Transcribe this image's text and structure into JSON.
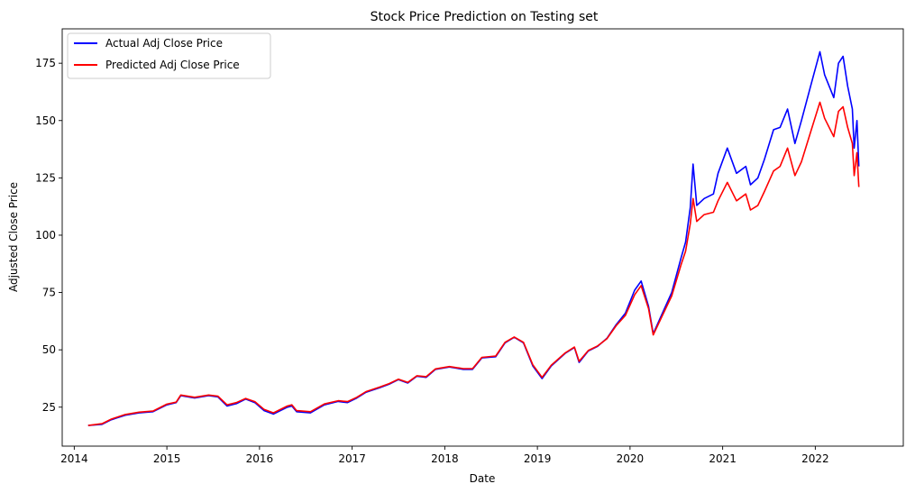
{
  "chart_data": {
    "type": "line",
    "title": "Stock Price Prediction on Testing set",
    "xlabel": "Date",
    "ylabel": "Adjusted Close Price",
    "xlim": [
      2013.87,
      2022.95
    ],
    "ylim": [
      8,
      190
    ],
    "x_ticks": [
      2014,
      2015,
      2016,
      2017,
      2018,
      2019,
      2020,
      2021,
      2022
    ],
    "x_tick_labels": [
      "2014",
      "2015",
      "2016",
      "2017",
      "2018",
      "2019",
      "2020",
      "2021",
      "2022"
    ],
    "y_ticks": [
      25,
      50,
      75,
      100,
      125,
      150,
      175
    ],
    "y_tick_labels": [
      "25",
      "50",
      "75",
      "100",
      "125",
      "150",
      "175"
    ],
    "grid": false,
    "legend_position": "top-left",
    "series": [
      {
        "name": "Actual Adj Close Price",
        "color": "#0000ff",
        "points": [
          [
            2014.15,
            17
          ],
          [
            2014.3,
            17.5
          ],
          [
            2014.4,
            19.5
          ],
          [
            2014.55,
            21.5
          ],
          [
            2014.7,
            22.5
          ],
          [
            2014.85,
            23
          ],
          [
            2015.0,
            26
          ],
          [
            2015.1,
            27
          ],
          [
            2015.15,
            30
          ],
          [
            2015.3,
            29
          ],
          [
            2015.45,
            30
          ],
          [
            2015.55,
            29.5
          ],
          [
            2015.65,
            25.5
          ],
          [
            2015.75,
            26.5
          ],
          [
            2015.85,
            28.5
          ],
          [
            2015.95,
            27
          ],
          [
            2016.05,
            23.5
          ],
          [
            2016.15,
            22
          ],
          [
            2016.3,
            25
          ],
          [
            2016.35,
            25.5
          ],
          [
            2016.4,
            23
          ],
          [
            2016.55,
            22.5
          ],
          [
            2016.7,
            26
          ],
          [
            2016.85,
            27.5
          ],
          [
            2016.95,
            27
          ],
          [
            2017.05,
            29
          ],
          [
            2017.15,
            31.5
          ],
          [
            2017.3,
            33.5
          ],
          [
            2017.4,
            35
          ],
          [
            2017.5,
            37
          ],
          [
            2017.6,
            35.5
          ],
          [
            2017.7,
            38.5
          ],
          [
            2017.8,
            38
          ],
          [
            2017.9,
            41.5
          ],
          [
            2018.05,
            42.5
          ],
          [
            2018.2,
            41.5
          ],
          [
            2018.3,
            41.5
          ],
          [
            2018.4,
            46.5
          ],
          [
            2018.55,
            47
          ],
          [
            2018.65,
            53
          ],
          [
            2018.75,
            55.5
          ],
          [
            2018.85,
            53
          ],
          [
            2018.95,
            43
          ],
          [
            2019.05,
            37.5
          ],
          [
            2019.15,
            43
          ],
          [
            2019.3,
            48.5
          ],
          [
            2019.4,
            51
          ],
          [
            2019.45,
            44.5
          ],
          [
            2019.55,
            49.5
          ],
          [
            2019.65,
            51.5
          ],
          [
            2019.75,
            55
          ],
          [
            2019.85,
            61
          ],
          [
            2019.95,
            66
          ],
          [
            2020.05,
            76
          ],
          [
            2020.12,
            80
          ],
          [
            2020.2,
            69
          ],
          [
            2020.25,
            57
          ],
          [
            2020.35,
            66
          ],
          [
            2020.45,
            75
          ],
          [
            2020.55,
            90
          ],
          [
            2020.6,
            97
          ],
          [
            2020.65,
            112
          ],
          [
            2020.68,
            131
          ],
          [
            2020.72,
            113
          ],
          [
            2020.8,
            116
          ],
          [
            2020.9,
            118
          ],
          [
            2020.95,
            127
          ],
          [
            2021.05,
            138
          ],
          [
            2021.15,
            127
          ],
          [
            2021.25,
            130
          ],
          [
            2021.3,
            122
          ],
          [
            2021.38,
            125
          ],
          [
            2021.45,
            133
          ],
          [
            2021.55,
            146
          ],
          [
            2021.62,
            147
          ],
          [
            2021.7,
            155
          ],
          [
            2021.78,
            140
          ],
          [
            2021.85,
            150
          ],
          [
            2021.95,
            165
          ],
          [
            2022.05,
            180
          ],
          [
            2022.1,
            170
          ],
          [
            2022.2,
            160
          ],
          [
            2022.25,
            175
          ],
          [
            2022.3,
            178
          ],
          [
            2022.35,
            165
          ],
          [
            2022.4,
            155
          ],
          [
            2022.42,
            138
          ],
          [
            2022.45,
            150
          ],
          [
            2022.47,
            130
          ]
        ]
      },
      {
        "name": "Predicted Adj Close Price",
        "color": "#ff0000",
        "points": [
          [
            2014.15,
            17
          ],
          [
            2014.3,
            17.8
          ],
          [
            2014.4,
            19.8
          ],
          [
            2014.55,
            21.8
          ],
          [
            2014.7,
            22.8
          ],
          [
            2014.85,
            23.3
          ],
          [
            2015.0,
            26.3
          ],
          [
            2015.1,
            27.2
          ],
          [
            2015.15,
            30.3
          ],
          [
            2015.3,
            29.3
          ],
          [
            2015.45,
            30.3
          ],
          [
            2015.55,
            29.8
          ],
          [
            2015.65,
            26
          ],
          [
            2015.75,
            27
          ],
          [
            2015.85,
            28.8
          ],
          [
            2015.95,
            27.4
          ],
          [
            2016.05,
            24
          ],
          [
            2016.15,
            22.5
          ],
          [
            2016.3,
            25.5
          ],
          [
            2016.35,
            26
          ],
          [
            2016.4,
            23.5
          ],
          [
            2016.55,
            23
          ],
          [
            2016.7,
            26.4
          ],
          [
            2016.85,
            27.8
          ],
          [
            2016.95,
            27.4
          ],
          [
            2017.05,
            29.3
          ],
          [
            2017.15,
            31.8
          ],
          [
            2017.3,
            33.8
          ],
          [
            2017.4,
            35.3
          ],
          [
            2017.5,
            37.2
          ],
          [
            2017.6,
            35.8
          ],
          [
            2017.7,
            38.7
          ],
          [
            2017.8,
            38.3
          ],
          [
            2017.9,
            41.7
          ],
          [
            2018.05,
            42.7
          ],
          [
            2018.2,
            41.8
          ],
          [
            2018.3,
            41.8
          ],
          [
            2018.4,
            46.7
          ],
          [
            2018.55,
            47.3
          ],
          [
            2018.65,
            53.3
          ],
          [
            2018.75,
            55.6
          ],
          [
            2018.85,
            53.3
          ],
          [
            2018.95,
            43.5
          ],
          [
            2019.05,
            38
          ],
          [
            2019.15,
            43.3
          ],
          [
            2019.3,
            48.7
          ],
          [
            2019.4,
            51.2
          ],
          [
            2019.45,
            45
          ],
          [
            2019.55,
            49.7
          ],
          [
            2019.65,
            51.7
          ],
          [
            2019.75,
            54.8
          ],
          [
            2019.85,
            60.5
          ],
          [
            2019.95,
            65
          ],
          [
            2020.05,
            74
          ],
          [
            2020.12,
            78
          ],
          [
            2020.2,
            68
          ],
          [
            2020.25,
            56.5
          ],
          [
            2020.35,
            65
          ],
          [
            2020.45,
            73.5
          ],
          [
            2020.55,
            87
          ],
          [
            2020.6,
            93
          ],
          [
            2020.65,
            105
          ],
          [
            2020.68,
            116
          ],
          [
            2020.72,
            106
          ],
          [
            2020.8,
            109
          ],
          [
            2020.9,
            110
          ],
          [
            2020.95,
            115
          ],
          [
            2021.05,
            123
          ],
          [
            2021.15,
            115
          ],
          [
            2021.25,
            118
          ],
          [
            2021.3,
            111
          ],
          [
            2021.38,
            113
          ],
          [
            2021.45,
            119
          ],
          [
            2021.55,
            128
          ],
          [
            2021.62,
            130
          ],
          [
            2021.7,
            138
          ],
          [
            2021.78,
            126
          ],
          [
            2021.85,
            132
          ],
          [
            2021.95,
            145
          ],
          [
            2022.05,
            158
          ],
          [
            2022.1,
            151
          ],
          [
            2022.2,
            143
          ],
          [
            2022.25,
            154
          ],
          [
            2022.3,
            156
          ],
          [
            2022.35,
            147
          ],
          [
            2022.4,
            140
          ],
          [
            2022.42,
            126
          ],
          [
            2022.45,
            136
          ],
          [
            2022.47,
            121
          ]
        ]
      }
    ]
  }
}
